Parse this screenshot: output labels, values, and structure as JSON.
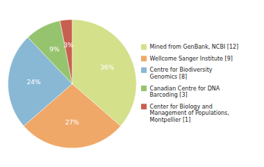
{
  "chart_data": {
    "type": "pie",
    "categories": [
      "Mined from GenBank, NCBI [12]",
      "Wellcome Sanger Institute [9]",
      "Centre for Biodiversity\nGenomics [8]",
      "Canadian Centre for DNA\nBarcoding [3]",
      "Center for Biology and\nManagement of Populations,\nMontpellier [1]"
    ],
    "values": [
      36,
      27,
      24,
      9,
      3
    ],
    "value_labels": [
      "36%",
      "27%",
      "24%",
      "9%",
      "3%"
    ],
    "colors": [
      "#d4e08a",
      "#f0a868",
      "#88b8d4",
      "#96c46e",
      "#c86050"
    ],
    "data_labels": true,
    "legend": "right"
  }
}
